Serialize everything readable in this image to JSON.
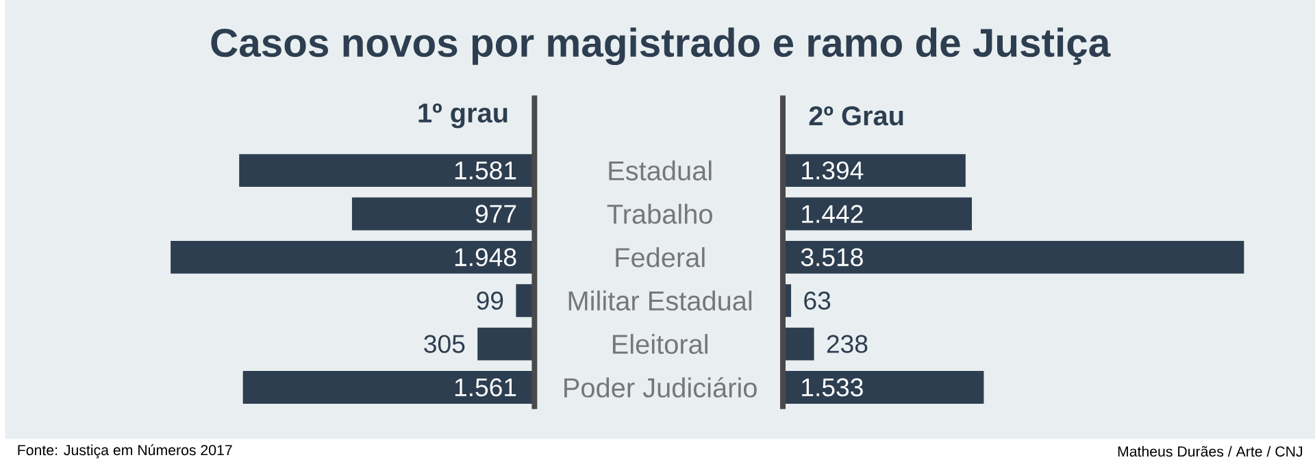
{
  "chart_data": [
    {
      "type": "bar",
      "orientation": "horizontal",
      "title": "Casos novos por magistrado e ramo de Justiça",
      "xlabel": "1º grau",
      "categories": [
        "Estadual",
        "Trabalho",
        "Federal",
        "Militar Estadual",
        "Eleitoral",
        "Poder Judiciário"
      ],
      "series": [
        {
          "color": "#2d3e50",
          "values": [
            1581,
            977,
            1948,
            99,
            305,
            1561
          ],
          "value_labels": [
            "1.581",
            "977",
            "1.948",
            "99",
            "305",
            "1.561"
          ]
        }
      ],
      "tick_labels": "y",
      "annotations": [
        "Fonte: Justiça em Números 2017"
      ]
    },
    {
      "type": "bar",
      "orientation": "horizontal",
      "xlabel": "2º Grau",
      "categories": [
        null,
        null,
        null,
        null,
        null,
        null
      ],
      "series": [
        {
          "color": "#2d3e50",
          "values": [
            1394,
            1442,
            3518,
            63,
            238,
            1533
          ],
          "value_labels": [
            "1.394",
            "1.442",
            "3.518",
            "63",
            "238",
            "1.533"
          ]
        }
      ],
      "tick_labels": false,
      "annotations": [
        "Matheus Durães / Arte / CNJ"
      ]
    }
  ]
}
